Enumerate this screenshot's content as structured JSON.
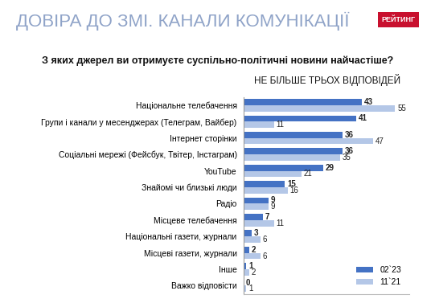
{
  "chart_data": {
    "type": "bar",
    "title": "ДОВІРА ДО ЗМІ. КАНАЛИ КОМУНІКАЦІЇ",
    "subtitle": "З яких джерел ви отримуєте суспільно-політичні новини найчастіше?",
    "annotations": [
      "НЕ БІЛЬШЕ ТРЬОХ ВІДПОВІДЕЙ",
      "РЕЙТИНГ"
    ],
    "orientation": "horizontal",
    "categories": [
      "Національне телебачення",
      "Групи і канали у месенджерах (Телеграм, Вайбер)",
      "Інтернет сторінки",
      "Соціальні мережі (Фейсбук, Твітер, Інстаграм)",
      "YouTube",
      "Знайомі чи близькі люди",
      "Радіо",
      "Місцеве телебачення",
      "Національні газети, журнали",
      "Місцеві газети, журнали",
      "Інше",
      "Важко відповісти"
    ],
    "series": [
      {
        "name": "02`23",
        "color": "#4472c4",
        "values": [
          43,
          41,
          36,
          36,
          29,
          15,
          9,
          7,
          3,
          2,
          1,
          0
        ]
      },
      {
        "name": "11`21",
        "color": "#b4c7e7",
        "values": [
          55,
          11,
          47,
          35,
          21,
          16,
          9,
          11,
          6,
          6,
          2,
          1
        ]
      }
    ],
    "xlim": [
      0,
      60
    ],
    "xticks": [],
    "data_labels": true,
    "tick_labels": "y",
    "legend": "lower right",
    "grid": false
  }
}
